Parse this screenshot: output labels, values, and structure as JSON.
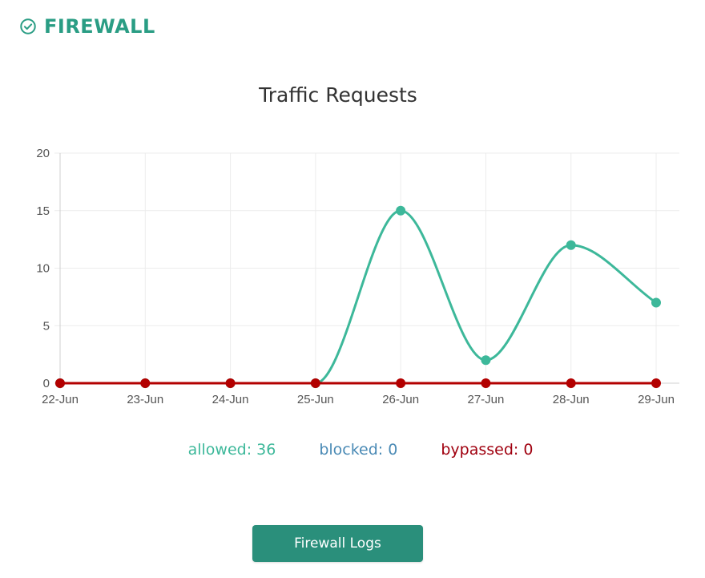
{
  "header": {
    "title": "FIREWALL",
    "icon": "check-circle-icon",
    "color": "#2a9d84"
  },
  "chart_data": {
    "type": "line",
    "title": "Traffic Requests",
    "categories": [
      "22-Jun",
      "23-Jun",
      "24-Jun",
      "25-Jun",
      "26-Jun",
      "27-Jun",
      "28-Jun",
      "29-Jun"
    ],
    "yticks": [
      "0",
      "5",
      "10",
      "15",
      "20"
    ],
    "ylim": [
      0,
      20
    ],
    "grid": true,
    "series": [
      {
        "name": "allowed",
        "values": [
          0,
          0,
          0,
          0,
          15,
          2,
          12,
          7
        ],
        "color": "#3db89a"
      },
      {
        "name": "bypassed",
        "values": [
          0,
          0,
          0,
          0,
          0,
          0,
          0,
          0
        ],
        "color": "#b30000"
      }
    ]
  },
  "legend": {
    "allowed": {
      "text": "allowed: 36",
      "color": "#3db89a"
    },
    "blocked": {
      "text": "blocked: 0",
      "color": "#4a8ab5"
    },
    "bypassed": {
      "text": "bypassed: 0",
      "color": "#a0000f"
    }
  },
  "footer": {
    "logs_button_label": "Firewall Logs",
    "button_color": "#2a8f7b"
  }
}
